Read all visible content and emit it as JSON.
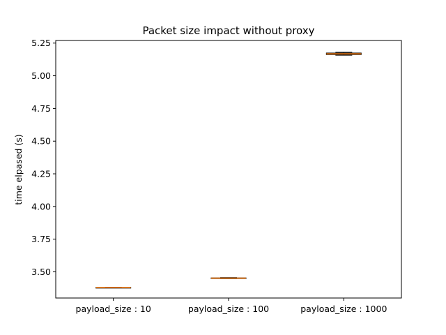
{
  "chart_data": {
    "type": "box",
    "title": "Packet size impact without proxy",
    "xlabel": "",
    "ylabel": "time elpased (s)",
    "ylim": [
      3.3,
      5.27
    ],
    "yticks": [
      3.5,
      3.75,
      4.0,
      4.25,
      4.5,
      4.75,
      5.0,
      5.25
    ],
    "ytick_labels": [
      "3.50",
      "3.75",
      "4.00",
      "4.25",
      "4.50",
      "4.75",
      "5.00",
      "5.25"
    ],
    "categories": [
      "payload_size : 10",
      "payload_size : 100",
      "payload_size : 1000"
    ],
    "boxes": [
      {
        "whislo": 3.378,
        "q1": 3.379,
        "med": 3.38,
        "q3": 3.381,
        "whishi": 3.382
      },
      {
        "whislo": 3.448,
        "q1": 3.45,
        "med": 3.452,
        "q3": 3.454,
        "whishi": 3.456
      },
      {
        "whislo": 5.157,
        "q1": 5.162,
        "med": 5.168,
        "q3": 5.174,
        "whishi": 5.18
      }
    ],
    "grid": false,
    "colors": {
      "box": "#000000",
      "median": "#ff7f0e"
    }
  }
}
